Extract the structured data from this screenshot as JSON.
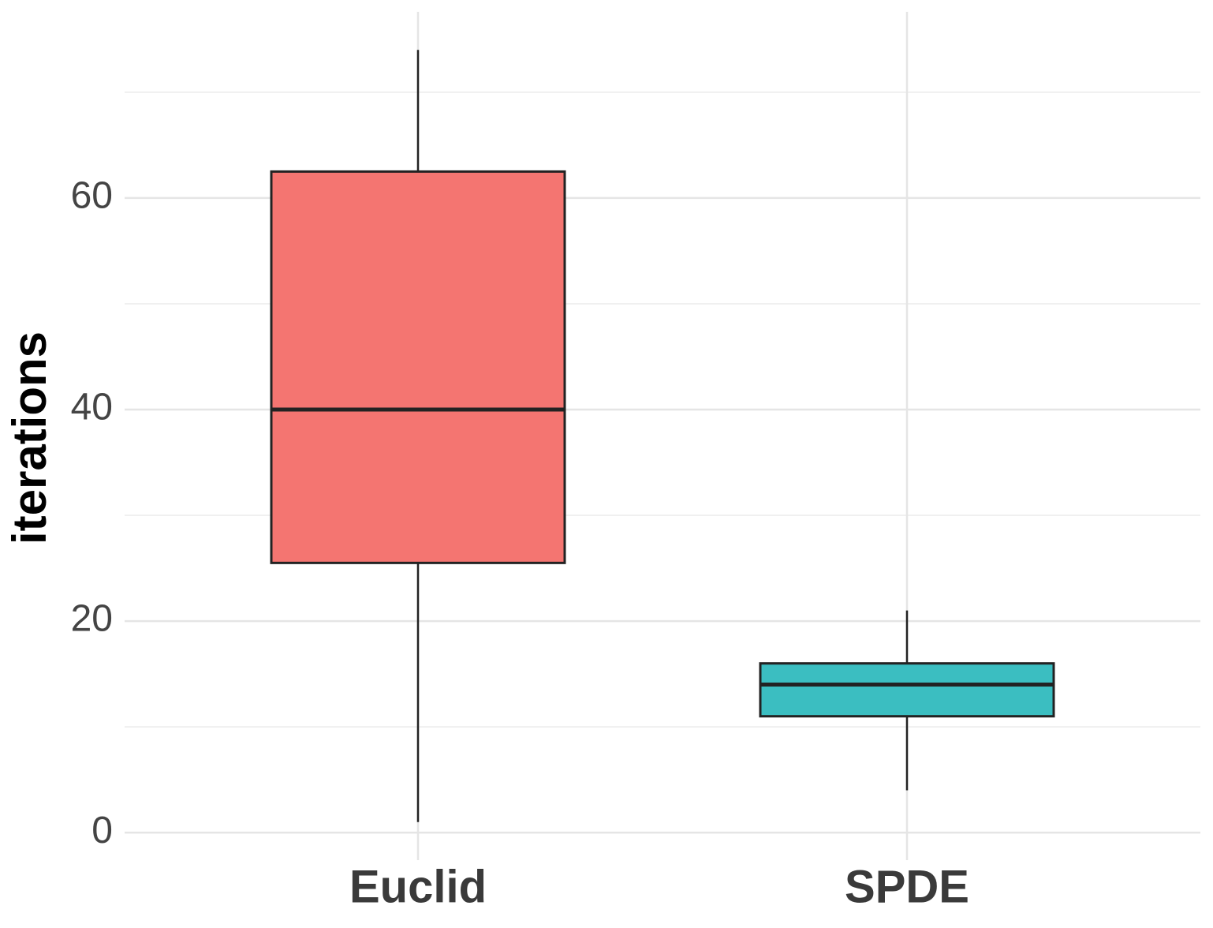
{
  "chart_data": {
    "type": "box",
    "y_label": "iterations",
    "categories": [
      "Euclid",
      "SPDE"
    ],
    "colors": [
      "#f47571",
      "#3bbec1"
    ],
    "min": [
      1,
      4
    ],
    "q1": [
      25.5,
      11
    ],
    "median": [
      40,
      14
    ],
    "q3": [
      62.5,
      16
    ],
    "max": [
      74,
      21
    ],
    "ylim": [
      -2.6,
      77.6
    ],
    "yticks": [
      0,
      20,
      40,
      60
    ],
    "minor_yticks": [
      10,
      30,
      50,
      70
    ],
    "grid": true
  }
}
